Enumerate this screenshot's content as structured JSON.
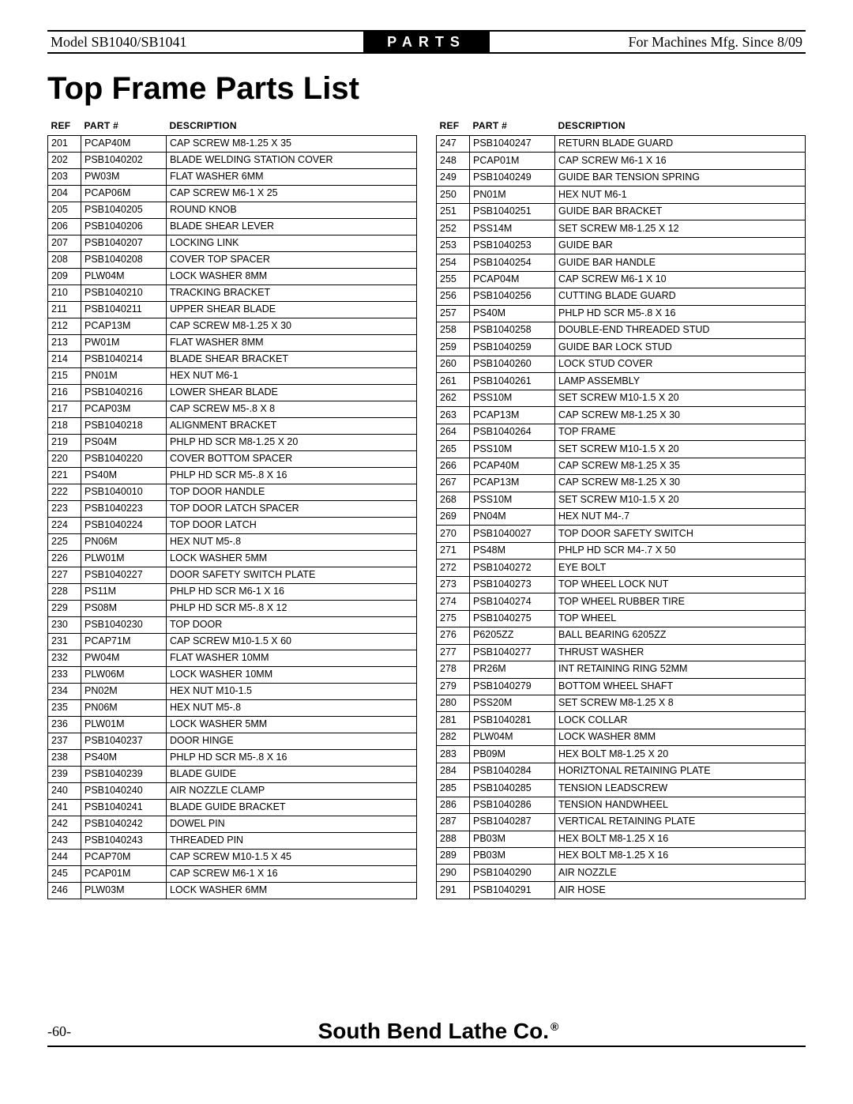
{
  "header": {
    "model": "Model SB1040/SB1041",
    "center": "PARTS",
    "right": "For Machines Mfg. Since 8/09"
  },
  "title": "Top Frame Parts List",
  "table_headers": [
    "REF",
    "PART #",
    "DESCRIPTION"
  ],
  "left_rows": [
    [
      "201",
      "PCAP40M",
      "CAP SCREW M8-1.25 X 35"
    ],
    [
      "202",
      "PSB1040202",
      "BLADE WELDING STATION COVER"
    ],
    [
      "203",
      "PW03M",
      "FLAT WASHER 6MM"
    ],
    [
      "204",
      "PCAP06M",
      "CAP SCREW M6-1 X 25"
    ],
    [
      "205",
      "PSB1040205",
      "ROUND KNOB"
    ],
    [
      "206",
      "PSB1040206",
      "BLADE SHEAR LEVER"
    ],
    [
      "207",
      "PSB1040207",
      "LOCKING LINK"
    ],
    [
      "208",
      "PSB1040208",
      "COVER TOP SPACER"
    ],
    [
      "209",
      "PLW04M",
      "LOCK WASHER 8MM"
    ],
    [
      "210",
      "PSB1040210",
      "TRACKING BRACKET"
    ],
    [
      "211",
      "PSB1040211",
      "UPPER SHEAR BLADE"
    ],
    [
      "212",
      "PCAP13M",
      "CAP SCREW M8-1.25 X 30"
    ],
    [
      "213",
      "PW01M",
      "FLAT WASHER 8MM"
    ],
    [
      "214",
      "PSB1040214",
      "BLADE SHEAR BRACKET"
    ],
    [
      "215",
      "PN01M",
      "HEX NUT M6-1"
    ],
    [
      "216",
      "PSB1040216",
      "LOWER SHEAR BLADE"
    ],
    [
      "217",
      "PCAP03M",
      "CAP SCREW M5-.8 X 8"
    ],
    [
      "218",
      "PSB1040218",
      "ALIGNMENT BRACKET"
    ],
    [
      "219",
      "PS04M",
      "PHLP HD SCR M8-1.25 X 20"
    ],
    [
      "220",
      "PSB1040220",
      "COVER BOTTOM SPACER"
    ],
    [
      "221",
      "PS40M",
      "PHLP HD SCR M5-.8 X 16"
    ],
    [
      "222",
      "PSB1040010",
      "TOP DOOR HANDLE"
    ],
    [
      "223",
      "PSB1040223",
      "TOP DOOR LATCH SPACER"
    ],
    [
      "224",
      "PSB1040224",
      "TOP DOOR LATCH"
    ],
    [
      "225",
      "PN06M",
      "HEX NUT M5-.8"
    ],
    [
      "226",
      "PLW01M",
      "LOCK WASHER 5MM"
    ],
    [
      "227",
      "PSB1040227",
      "DOOR SAFETY SWITCH PLATE"
    ],
    [
      "228",
      "PS11M",
      "PHLP HD SCR M6-1 X 16"
    ],
    [
      "229",
      "PS08M",
      "PHLP HD SCR M5-.8 X 12"
    ],
    [
      "230",
      "PSB1040230",
      "TOP DOOR"
    ],
    [
      "231",
      "PCAP71M",
      "CAP SCREW M10-1.5 X 60"
    ],
    [
      "232",
      "PW04M",
      "FLAT WASHER 10MM"
    ],
    [
      "233",
      "PLW06M",
      "LOCK WASHER 10MM"
    ],
    [
      "234",
      "PN02M",
      "HEX NUT M10-1.5"
    ],
    [
      "235",
      "PN06M",
      "HEX NUT M5-.8"
    ],
    [
      "236",
      "PLW01M",
      "LOCK WASHER 5MM"
    ],
    [
      "237",
      "PSB1040237",
      "DOOR HINGE"
    ],
    [
      "238",
      "PS40M",
      "PHLP HD SCR M5-.8 X 16"
    ],
    [
      "239",
      "PSB1040239",
      "BLADE GUIDE"
    ],
    [
      "240",
      "PSB1040240",
      "AIR NOZZLE CLAMP"
    ],
    [
      "241",
      "PSB1040241",
      "BLADE GUIDE BRACKET"
    ],
    [
      "242",
      "PSB1040242",
      "DOWEL PIN"
    ],
    [
      "243",
      "PSB1040243",
      "THREADED PIN"
    ],
    [
      "244",
      "PCAP70M",
      "CAP SCREW M10-1.5 X 45"
    ],
    [
      "245",
      "PCAP01M",
      "CAP SCREW M6-1 X 16"
    ],
    [
      "246",
      "PLW03M",
      "LOCK WASHER 6MM"
    ]
  ],
  "right_rows": [
    [
      "247",
      "PSB1040247",
      "RETURN BLADE GUARD"
    ],
    [
      "248",
      "PCAP01M",
      "CAP SCREW M6-1 X 16"
    ],
    [
      "249",
      "PSB1040249",
      "GUIDE BAR TENSION SPRING"
    ],
    [
      "250",
      "PN01M",
      "HEX NUT M6-1"
    ],
    [
      "251",
      "PSB1040251",
      "GUIDE BAR BRACKET"
    ],
    [
      "252",
      "PSS14M",
      "SET SCREW M8-1.25 X 12"
    ],
    [
      "253",
      "PSB1040253",
      "GUIDE BAR"
    ],
    [
      "254",
      "PSB1040254",
      "GUIDE BAR HANDLE"
    ],
    [
      "255",
      "PCAP04M",
      "CAP SCREW M6-1 X 10"
    ],
    [
      "256",
      "PSB1040256",
      "CUTTING BLADE GUARD"
    ],
    [
      "257",
      "PS40M",
      "PHLP HD SCR M5-.8 X 16"
    ],
    [
      "258",
      "PSB1040258",
      "DOUBLE-END THREADED STUD"
    ],
    [
      "259",
      "PSB1040259",
      "GUIDE BAR LOCK STUD"
    ],
    [
      "260",
      "PSB1040260",
      "LOCK STUD COVER"
    ],
    [
      "261",
      "PSB1040261",
      "LAMP ASSEMBLY"
    ],
    [
      "262",
      "PSS10M",
      "SET SCREW M10-1.5 X 20"
    ],
    [
      "263",
      "PCAP13M",
      "CAP SCREW M8-1.25 X 30"
    ],
    [
      "264",
      "PSB1040264",
      "TOP FRAME"
    ],
    [
      "265",
      "PSS10M",
      "SET SCREW M10-1.5 X 20"
    ],
    [
      "266",
      "PCAP40M",
      "CAP SCREW M8-1.25 X 35"
    ],
    [
      "267",
      "PCAP13M",
      "CAP SCREW M8-1.25 X 30"
    ],
    [
      "268",
      "PSS10M",
      "SET SCREW M10-1.5 X 20"
    ],
    [
      "269",
      "PN04M",
      "HEX NUT M4-.7"
    ],
    [
      "270",
      "PSB1040027",
      "TOP DOOR SAFETY SWITCH"
    ],
    [
      "271",
      "PS48M",
      "PHLP HD SCR M4-.7 X 50"
    ],
    [
      "272",
      "PSB1040272",
      "EYE BOLT"
    ],
    [
      "273",
      "PSB1040273",
      "TOP WHEEL LOCK NUT"
    ],
    [
      "274",
      "PSB1040274",
      "TOP WHEEL RUBBER TIRE"
    ],
    [
      "275",
      "PSB1040275",
      "TOP WHEEL"
    ],
    [
      "276",
      "P6205ZZ",
      "BALL BEARING 6205ZZ"
    ],
    [
      "277",
      "PSB1040277",
      "THRUST WASHER"
    ],
    [
      "278",
      "PR26M",
      "INT RETAINING RING 52MM"
    ],
    [
      "279",
      "PSB1040279",
      "BOTTOM WHEEL SHAFT"
    ],
    [
      "280",
      "PSS20M",
      "SET SCREW M8-1.25 X 8"
    ],
    [
      "281",
      "PSB1040281",
      "LOCK COLLAR"
    ],
    [
      "282",
      "PLW04M",
      "LOCK WASHER 8MM"
    ],
    [
      "283",
      "PB09M",
      "HEX BOLT M8-1.25 X 20"
    ],
    [
      "284",
      "PSB1040284",
      "HORIZTONAL RETAINING PLATE"
    ],
    [
      "285",
      "PSB1040285",
      "TENSION LEADSCREW"
    ],
    [
      "286",
      "PSB1040286",
      "TENSION HANDWHEEL"
    ],
    [
      "287",
      "PSB1040287",
      "VERTICAL RETAINING PLATE"
    ],
    [
      "288",
      "PB03M",
      "HEX BOLT M8-1.25 X 16"
    ],
    [
      "289",
      "PB03M",
      "HEX BOLT M8-1.25 X 16"
    ],
    [
      "290",
      "PSB1040290",
      "AIR NOZZLE"
    ],
    [
      "291",
      "PSB1040291",
      "AIR HOSE"
    ]
  ],
  "footer": {
    "page": "-60-",
    "brand": "South Bend Lathe Co."
  }
}
